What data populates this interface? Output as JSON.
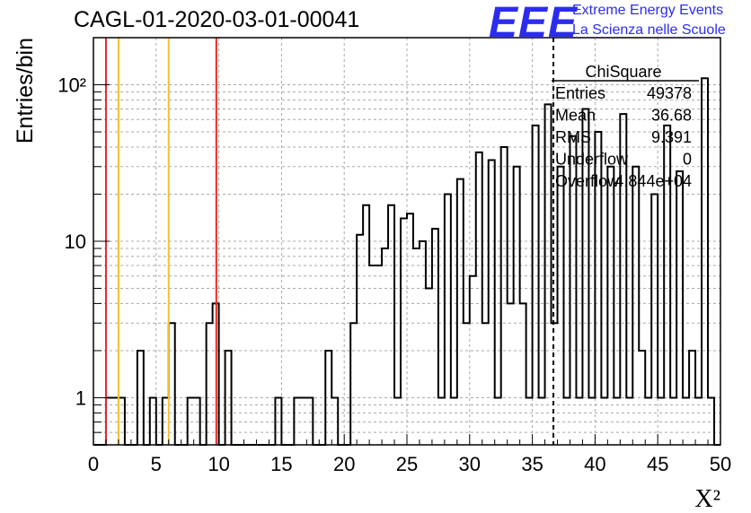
{
  "header": {
    "run_title": "CAGL-01-2020-03-01-00041",
    "logo_text": "EEE",
    "logo_line1": "Extreme Energy Events",
    "logo_line2": "La Scienza nelle Scuole"
  },
  "colors": {
    "histogram": "#000000",
    "red_marker": "#e8262a",
    "yellow_marker": "#f2c12e",
    "grid": "#a8a8a8",
    "logo_blue": "#2c2cf0"
  },
  "stats_box": {
    "title": "ChiSquare",
    "rows": [
      {
        "label": "Entries",
        "value": "49378"
      },
      {
        "label": "Mean",
        "value": "36.68"
      },
      {
        "label": "RMS",
        "value": "9.391"
      },
      {
        "label": "Underflow",
        "value": "0"
      },
      {
        "label": "Overflow",
        "value": "4.844e+04"
      }
    ]
  },
  "chart_data": {
    "type": "histogram",
    "xlabel": "X²",
    "ylabel": "Entries/bin",
    "xlim": [
      0,
      50
    ],
    "ylim": [
      0.5,
      200
    ],
    "y_scale": "log",
    "x_ticks": [
      "0",
      "5",
      "10",
      "15",
      "20",
      "25",
      "30",
      "35",
      "40",
      "45",
      "50"
    ],
    "y_ticks": [
      {
        "value": 1,
        "label": "1"
      },
      {
        "value": 10,
        "label": "10"
      },
      {
        "value": 100,
        "label": "10²"
      }
    ],
    "grid": true,
    "bin_width": 0.5,
    "bins": [
      {
        "x0": 1.0,
        "count": 1
      },
      {
        "x0": 1.5,
        "count": 1
      },
      {
        "x0": 2.0,
        "count": 1
      },
      {
        "x0": 3.5,
        "count": 2
      },
      {
        "x0": 4.5,
        "count": 1
      },
      {
        "x0": 5.5,
        "count": 1
      },
      {
        "x0": 6.0,
        "count": 3
      },
      {
        "x0": 7.5,
        "count": 1
      },
      {
        "x0": 8.0,
        "count": 1
      },
      {
        "x0": 9.0,
        "count": 3
      },
      {
        "x0": 9.5,
        "count": 4
      },
      {
        "x0": 10.5,
        "count": 2
      },
      {
        "x0": 14.5,
        "count": 1
      },
      {
        "x0": 16.0,
        "count": 1
      },
      {
        "x0": 16.5,
        "count": 1
      },
      {
        "x0": 17.0,
        "count": 1
      },
      {
        "x0": 18.5,
        "count": 2
      },
      {
        "x0": 19.0,
        "count": 1
      },
      {
        "x0": 20.5,
        "count": 3
      },
      {
        "x0": 21.0,
        "count": 11
      },
      {
        "x0": 21.5,
        "count": 17
      },
      {
        "x0": 22.0,
        "count": 7
      },
      {
        "x0": 22.5,
        "count": 7
      },
      {
        "x0": 23.0,
        "count": 9
      },
      {
        "x0": 23.5,
        "count": 17
      },
      {
        "x0": 24.0,
        "count": 1
      },
      {
        "x0": 24.5,
        "count": 14
      },
      {
        "x0": 25.0,
        "count": 15
      },
      {
        "x0": 25.5,
        "count": 9
      },
      {
        "x0": 26.0,
        "count": 10
      },
      {
        "x0": 26.5,
        "count": 5
      },
      {
        "x0": 27.0,
        "count": 12
      },
      {
        "x0": 27.5,
        "count": 1
      },
      {
        "x0": 28.0,
        "count": 20
      },
      {
        "x0": 28.5,
        "count": 1
      },
      {
        "x0": 29.0,
        "count": 25
      },
      {
        "x0": 29.5,
        "count": 3
      },
      {
        "x0": 30.0,
        "count": 6
      },
      {
        "x0": 30.5,
        "count": 37
      },
      {
        "x0": 31.0,
        "count": 3
      },
      {
        "x0": 31.5,
        "count": 33
      },
      {
        "x0": 32.0,
        "count": 1
      },
      {
        "x0": 32.5,
        "count": 40
      },
      {
        "x0": 33.0,
        "count": 4
      },
      {
        "x0": 33.5,
        "count": 30
      },
      {
        "x0": 34.0,
        "count": 4
      },
      {
        "x0": 34.5,
        "count": 1
      },
      {
        "x0": 35.0,
        "count": 55
      },
      {
        "x0": 35.5,
        "count": 1
      },
      {
        "x0": 36.0,
        "count": 75
      },
      {
        "x0": 36.5,
        "count": 3
      },
      {
        "x0": 37.0,
        "count": 30
      },
      {
        "x0": 37.5,
        "count": 1
      },
      {
        "x0": 38.0,
        "count": 47
      },
      {
        "x0": 38.5,
        "count": 1
      },
      {
        "x0": 39.0,
        "count": 70
      },
      {
        "x0": 39.5,
        "count": 1
      },
      {
        "x0": 40.0,
        "count": 50
      },
      {
        "x0": 40.5,
        "count": 1
      },
      {
        "x0": 41.0,
        "count": 30
      },
      {
        "x0": 41.5,
        "count": 1
      },
      {
        "x0": 42.0,
        "count": 65
      },
      {
        "x0": 42.5,
        "count": 1
      },
      {
        "x0": 43.0,
        "count": 30
      },
      {
        "x0": 43.5,
        "count": 2
      },
      {
        "x0": 44.0,
        "count": 1
      },
      {
        "x0": 44.5,
        "count": 20
      },
      {
        "x0": 45.0,
        "count": 1
      },
      {
        "x0": 45.5,
        "count": 55
      },
      {
        "x0": 46.0,
        "count": 1
      },
      {
        "x0": 46.5,
        "count": 28
      },
      {
        "x0": 47.0,
        "count": 1
      },
      {
        "x0": 47.5,
        "count": 2
      },
      {
        "x0": 48.0,
        "count": 1
      },
      {
        "x0": 48.5,
        "count": 110
      },
      {
        "x0": 49.0,
        "count": 1
      }
    ],
    "markers": [
      {
        "x": 1.0,
        "color": "red"
      },
      {
        "x": 2.0,
        "color": "yellow"
      },
      {
        "x": 6.0,
        "color": "yellow"
      },
      {
        "x": 9.8,
        "color": "red"
      },
      {
        "x": 36.68,
        "color": "black",
        "style": "dashed"
      }
    ]
  }
}
